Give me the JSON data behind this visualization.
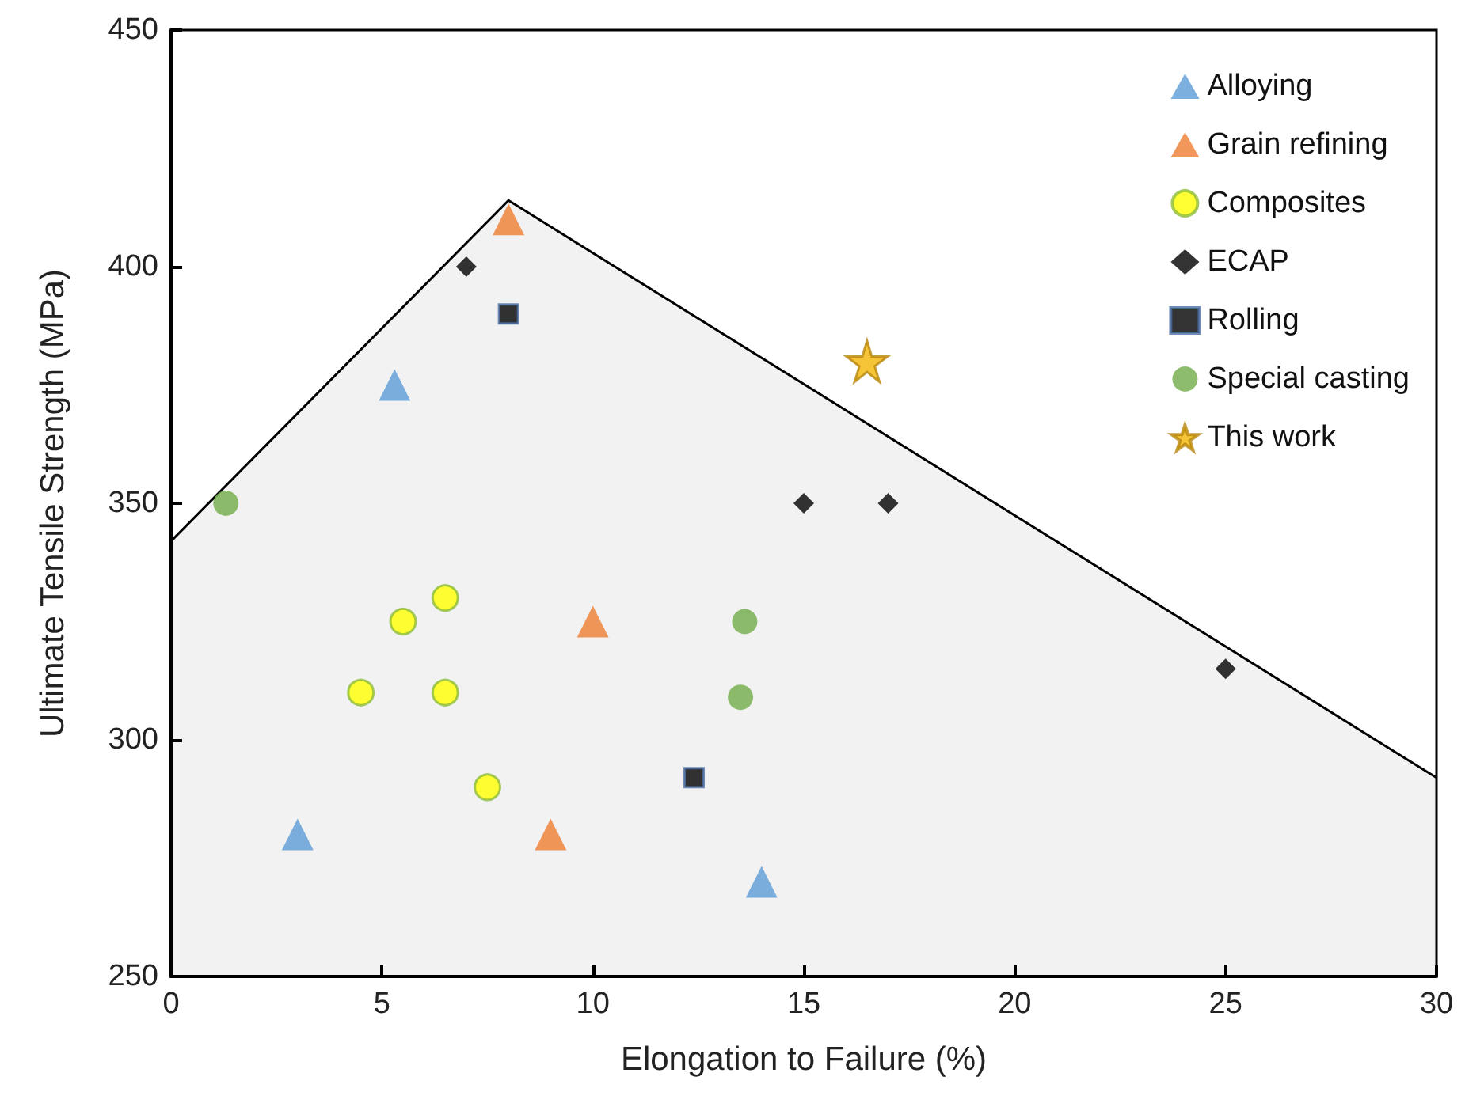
{
  "chart_data": {
    "type": "scatter",
    "xlabel": "Elongation to Failure (%)",
    "ylabel": "Ultimate Tensile Strength (MPa)",
    "xlim": [
      0,
      30
    ],
    "xticks": [
      0,
      5,
      10,
      15,
      20,
      25,
      30
    ],
    "ylim": [
      250,
      450
    ],
    "yticks": [
      250,
      300,
      350,
      400,
      450
    ],
    "grid": false,
    "legend": "top right",
    "series": [
      {
        "type": "area",
        "color": "#000000",
        "x": [
          0,
          8,
          30
        ],
        "values": [
          342,
          414,
          292
        ],
        "marker": "none"
      },
      {
        "name": "Alloying",
        "color": "#5b9bd5",
        "marker": "triangle",
        "x": [
          3,
          5.3,
          14
        ],
        "values": [
          280,
          375,
          270
        ]
      },
      {
        "name": "Grain refining",
        "color": "#ed7d31",
        "marker": "triangle",
        "x": [
          8,
          10,
          9
        ],
        "values": [
          410,
          325,
          280
        ]
      },
      {
        "name": "Composites",
        "color": "#ffff00",
        "marker": "circle",
        "x": [
          4.5,
          5.5,
          6.5,
          6.5,
          7.5
        ],
        "values": [
          310,
          325,
          330,
          310,
          290
        ]
      },
      {
        "name": "ECAP",
        "color": "#000000",
        "marker": "diamond",
        "x": [
          7,
          15,
          17,
          25
        ],
        "values": [
          400,
          350,
          350,
          315
        ]
      },
      {
        "name": "Rolling",
        "color": "#000000",
        "marker": "square",
        "x": [
          8,
          12.4
        ],
        "values": [
          390,
          292
        ]
      },
      {
        "name": "Special casting",
        "color": "#70ad47",
        "marker": "circle",
        "x": [
          1.3,
          13.6,
          13.5
        ],
        "values": [
          350,
          325,
          309
        ]
      },
      {
        "name": "This work",
        "color": "#f2b705",
        "marker": "star",
        "x": [
          16.5
        ],
        "values": [
          380
        ]
      }
    ]
  }
}
